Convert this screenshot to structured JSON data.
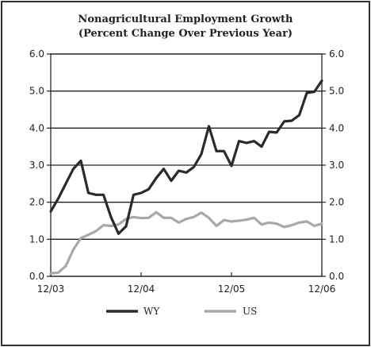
{
  "chart_data": {
    "type": "line",
    "title": "Nonagricultural Employment Growth",
    "subtitle": "(Percent Change Over Previous Year)",
    "x_tick_labels": [
      "12/03",
      "12/04",
      "12/05",
      "12/06"
    ],
    "y_ticks": [
      "0.0",
      "1.0",
      "2.0",
      "3.0",
      "4.0",
      "5.0",
      "6.0"
    ],
    "ylim": [
      0,
      6
    ],
    "x_range_months": [
      0,
      36
    ],
    "grid": "horizontal",
    "legend_position": "bottom-center",
    "series": [
      {
        "name": "WY",
        "color": "#2a2a2a",
        "x": [
          0,
          1,
          2,
          3,
          4,
          5,
          6,
          7,
          8,
          9,
          10,
          11,
          12,
          13,
          14,
          15,
          16,
          17,
          18,
          19,
          20,
          21,
          22,
          23,
          24,
          25,
          26,
          27,
          28,
          29,
          30,
          31,
          32,
          33,
          34,
          35,
          36
        ],
        "values": [
          1.75,
          2.1,
          2.5,
          2.9,
          3.12,
          2.25,
          2.2,
          2.2,
          1.6,
          1.15,
          1.35,
          2.2,
          2.25,
          2.35,
          2.65,
          2.9,
          2.58,
          2.85,
          2.8,
          2.95,
          3.3,
          4.05,
          3.38,
          3.38,
          2.98,
          3.65,
          3.6,
          3.65,
          3.5,
          3.9,
          3.88,
          4.18,
          4.2,
          4.35,
          4.95,
          4.98,
          5.28
        ]
      },
      {
        "name": "US",
        "color": "#a8a8a8",
        "x": [
          0,
          1,
          2,
          3,
          4,
          5,
          6,
          7,
          8,
          9,
          10,
          11,
          12,
          13,
          14,
          15,
          16,
          17,
          18,
          19,
          20,
          21,
          22,
          23,
          24,
          25,
          26,
          27,
          28,
          29,
          30,
          31,
          32,
          33,
          34,
          35,
          36
        ],
        "values": [
          0.08,
          0.1,
          0.28,
          0.72,
          1.03,
          1.12,
          1.22,
          1.38,
          1.36,
          1.4,
          1.55,
          1.6,
          1.57,
          1.58,
          1.73,
          1.58,
          1.58,
          1.45,
          1.55,
          1.6,
          1.72,
          1.58,
          1.36,
          1.52,
          1.48,
          1.5,
          1.53,
          1.58,
          1.4,
          1.45,
          1.42,
          1.33,
          1.38,
          1.45,
          1.48,
          1.36,
          1.42
        ]
      }
    ]
  }
}
